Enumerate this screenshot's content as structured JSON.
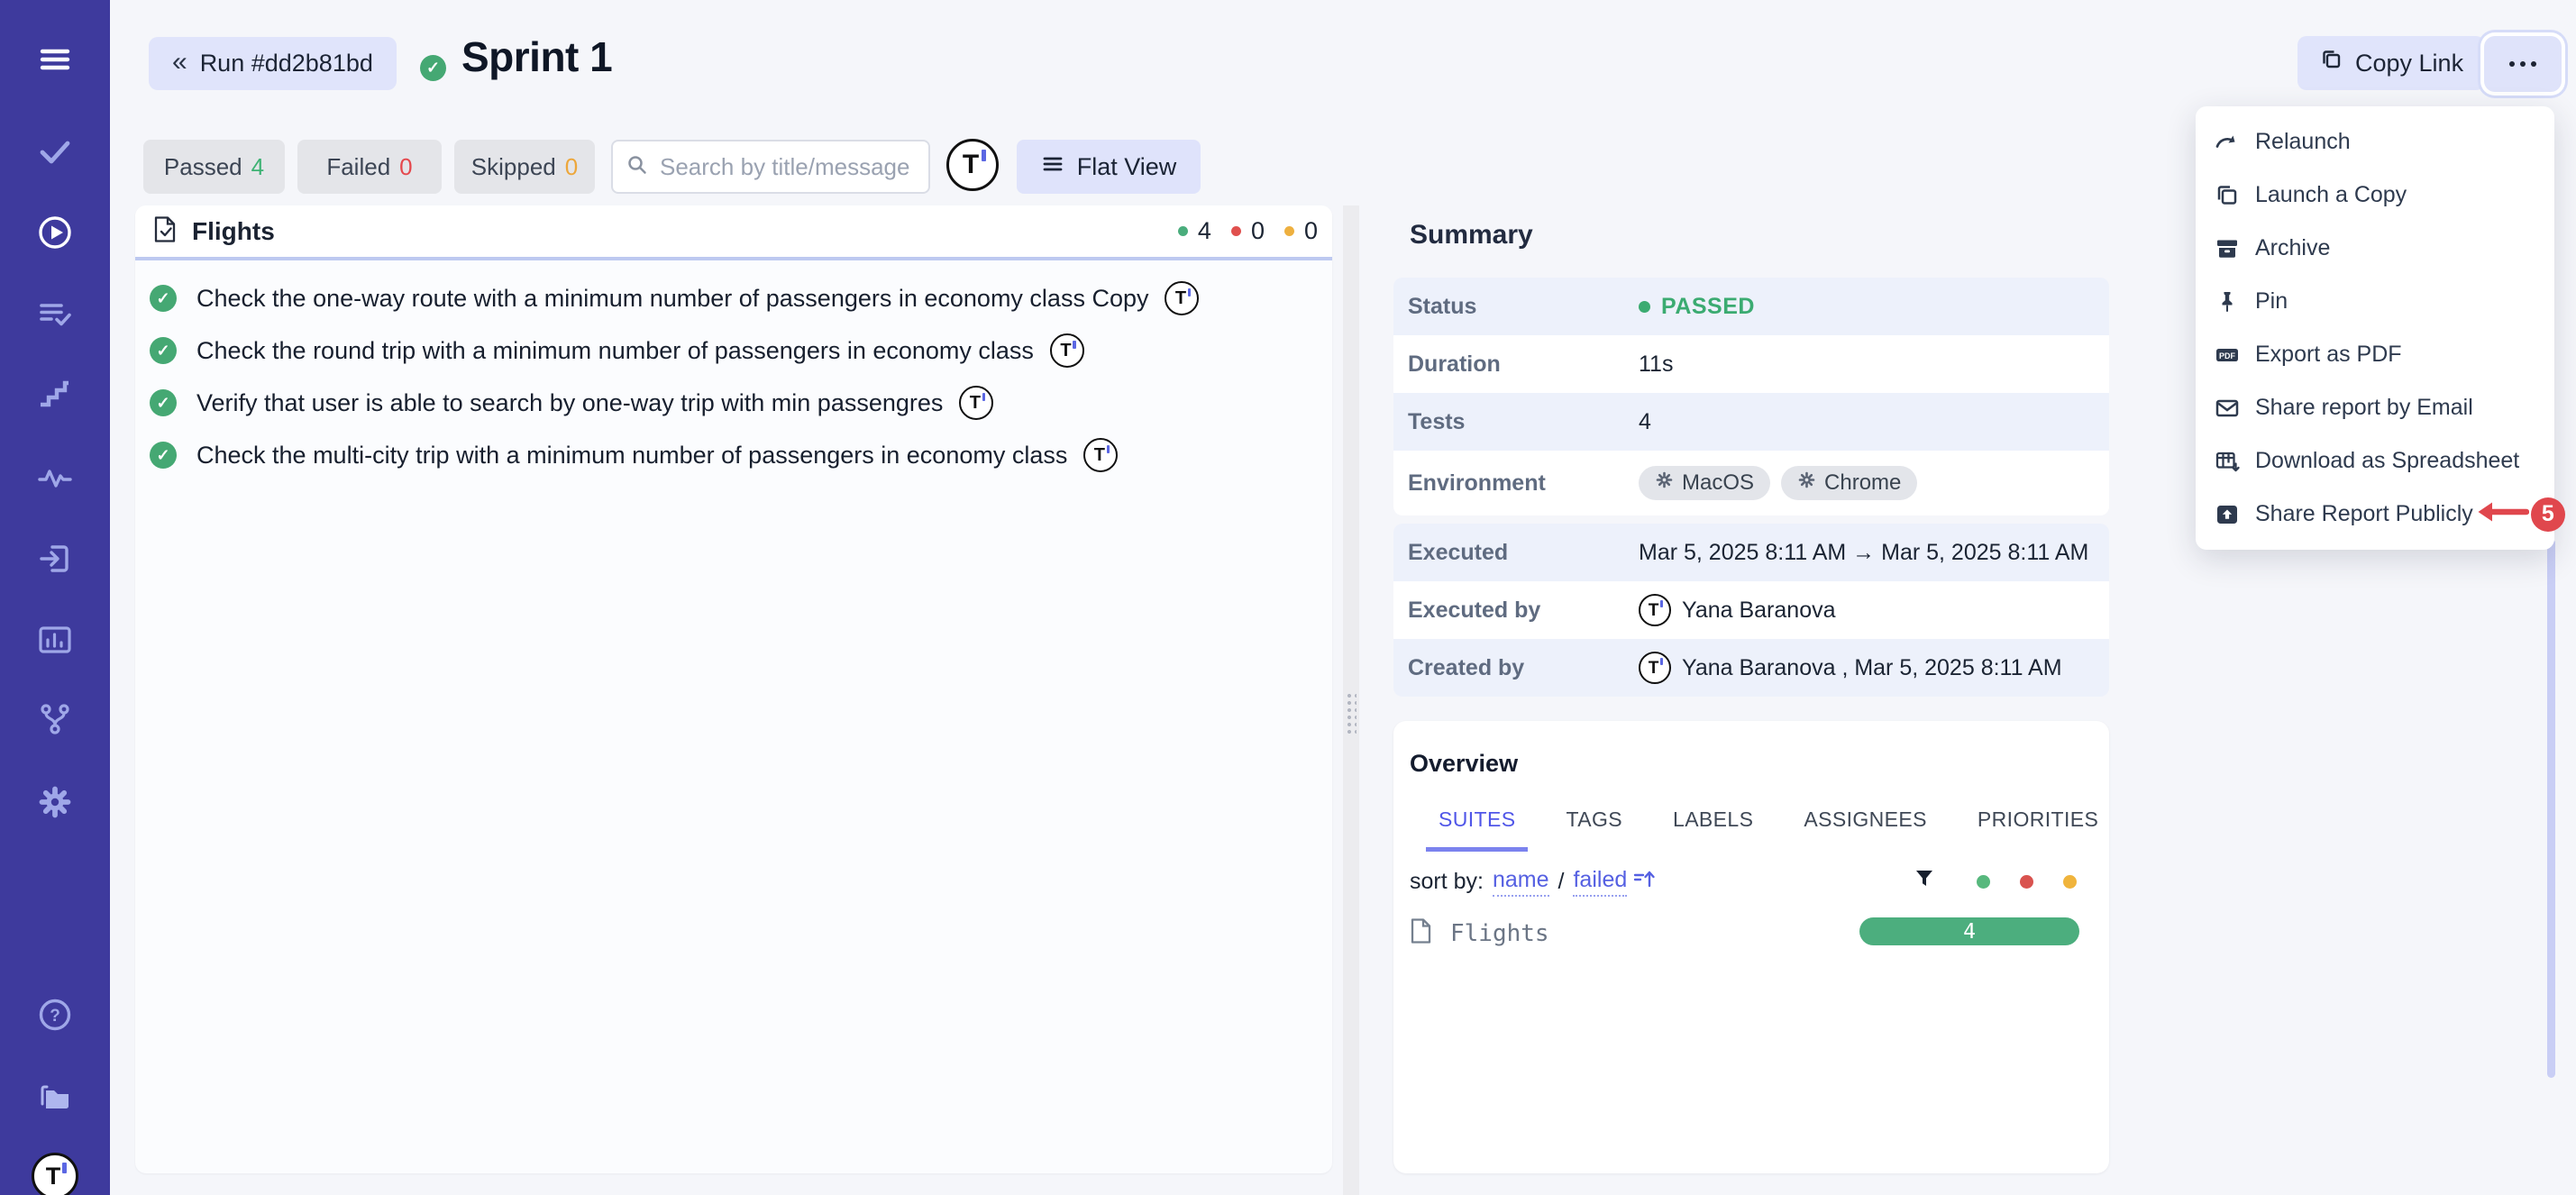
{
  "colors": {
    "sidebar": "#3e3a9d",
    "accent": "#5560e2",
    "green": "#45a873",
    "red": "#e5484d",
    "yellow": "#eda73b",
    "lavender": "#e0e4fb",
    "passed_text": "#3bab71"
  },
  "header": {
    "back_chevron": "«",
    "back_label": "Run #dd2b81bd",
    "title": "Sprint 1",
    "copy_link_label": "Copy Link"
  },
  "filter_bar": {
    "passed_label": "Passed",
    "passed_count": "4",
    "failed_label": "Failed",
    "failed_count": "0",
    "skipped_label": "Skipped",
    "skipped_count": "0",
    "search_placeholder": "Search by title/message",
    "view_label": "Flat View"
  },
  "sidebar": {
    "items": [
      {
        "icon": "menu"
      },
      {
        "icon": "checkmark"
      },
      {
        "icon": "play-circle",
        "active": true
      },
      {
        "icon": "list-check"
      },
      {
        "icon": "steps"
      },
      {
        "icon": "activity"
      },
      {
        "icon": "sign-in"
      },
      {
        "icon": "analytics"
      },
      {
        "icon": "branch"
      },
      {
        "icon": "gear"
      },
      {
        "icon": "help"
      },
      {
        "icon": "folder"
      }
    ]
  },
  "suite_panel": {
    "suite_name": "Flights",
    "passed_count": "4",
    "failed_count": "0",
    "skipped_count": "0",
    "tests": [
      {
        "title": "Check the one-way route with a minimum number of passengers in economy class Copy"
      },
      {
        "title": "Check the round trip with a minimum number of passengers in economy class"
      },
      {
        "title": "Verify that user is able to search by one-way trip with min passengres"
      },
      {
        "title": "Check the multi-city trip with a minimum number of passengers in economy class"
      }
    ]
  },
  "summary": {
    "title": "Summary",
    "status_label": "Status",
    "status_value": "PASSED",
    "duration_label": "Duration",
    "duration_value": "11s",
    "tests_label": "Tests",
    "tests_value": "4",
    "environment_label": "Environment",
    "environments": [
      "MacOS",
      "Chrome"
    ],
    "executed_label": "Executed",
    "executed_value": "Mar 5, 2025 8:11 AM → Mar 5, 2025 8:11 AM",
    "executed_by_label": "Executed by",
    "executed_by_value": "Yana Baranova",
    "created_by_label": "Created by",
    "created_by_value": "Yana Baranova , Mar 5, 2025 8:11 AM"
  },
  "overview": {
    "title": "Overview",
    "tabs": [
      {
        "label": "SUITES",
        "active": true
      },
      {
        "label": "TAGS"
      },
      {
        "label": "LABELS"
      },
      {
        "label": "ASSIGNEES"
      },
      {
        "label": "PRIORITIES"
      }
    ],
    "sort_prefix": "sort by:",
    "sort_name": "name",
    "sort_separator": "/",
    "sort_failed": "failed",
    "row": {
      "name": "Flights",
      "passed_count": "4"
    }
  },
  "menu": {
    "items": [
      {
        "icon": "relaunch",
        "label": "Relaunch"
      },
      {
        "icon": "copy",
        "label": "Launch a Copy"
      },
      {
        "icon": "archive",
        "label": "Archive"
      },
      {
        "icon": "pin",
        "label": "Pin"
      },
      {
        "icon": "pdf",
        "label": "Export as PDF"
      },
      {
        "icon": "email",
        "label": "Share report by Email"
      },
      {
        "icon": "spreadsheet",
        "label": "Download as Spreadsheet"
      },
      {
        "icon": "share",
        "label": "Share Report Publicly",
        "annotated": true
      }
    ]
  },
  "annotation": {
    "badge_label": "5"
  }
}
